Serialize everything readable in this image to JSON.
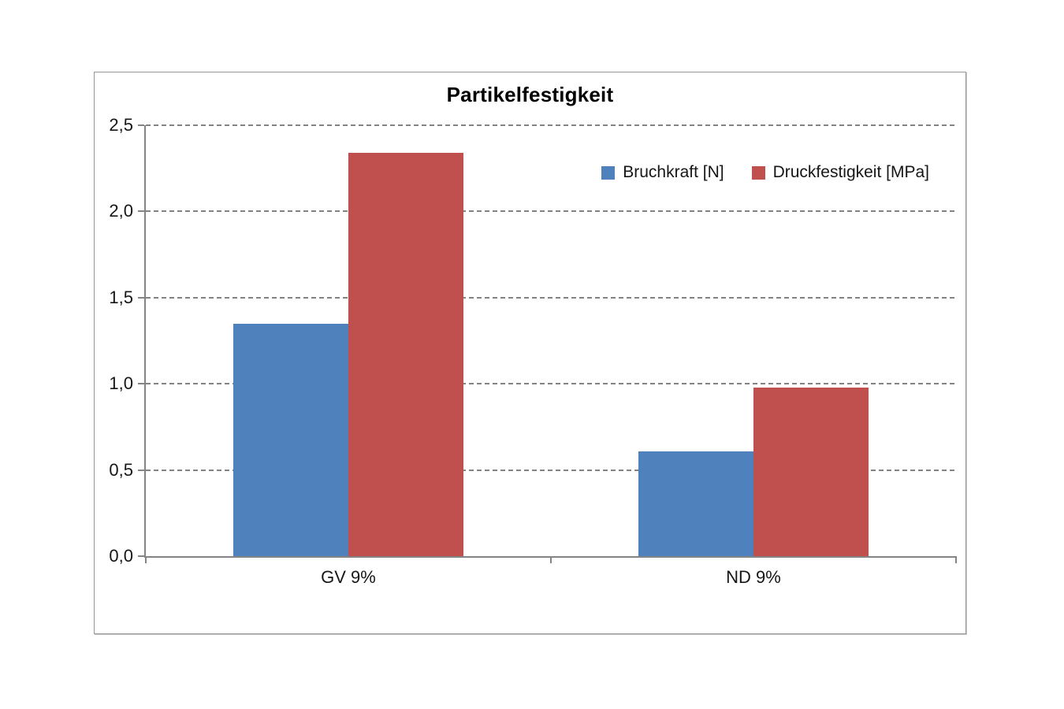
{
  "chart_data": {
    "type": "bar",
    "title": "Partikelfestigkeit",
    "categories": [
      "GV 9%",
      "ND 9%"
    ],
    "series": [
      {
        "name": "Bruchkraft [N]",
        "color": "#4F81BD",
        "values": [
          1.35,
          0.61
        ]
      },
      {
        "name": "Druckfestigkeit [MPa]",
        "color": "#C0504D",
        "values": [
          2.34,
          0.98
        ]
      }
    ],
    "ylim": [
      0,
      2.5
    ],
    "yticks": [
      {
        "value": 0.0,
        "label": "0,0"
      },
      {
        "value": 0.5,
        "label": "0,5"
      },
      {
        "value": 1.0,
        "label": "1,0"
      },
      {
        "value": 1.5,
        "label": "1,5"
      },
      {
        "value": 2.0,
        "label": "2,0"
      },
      {
        "value": 2.5,
        "label": "2,5"
      }
    ],
    "xlabel": "",
    "ylabel": "",
    "grid": "horizontal-dashed",
    "legend_position": "top-right-inside",
    "axis_color": "#848484",
    "gridline_color": "#828282",
    "background_color": "#FFFFFF"
  }
}
